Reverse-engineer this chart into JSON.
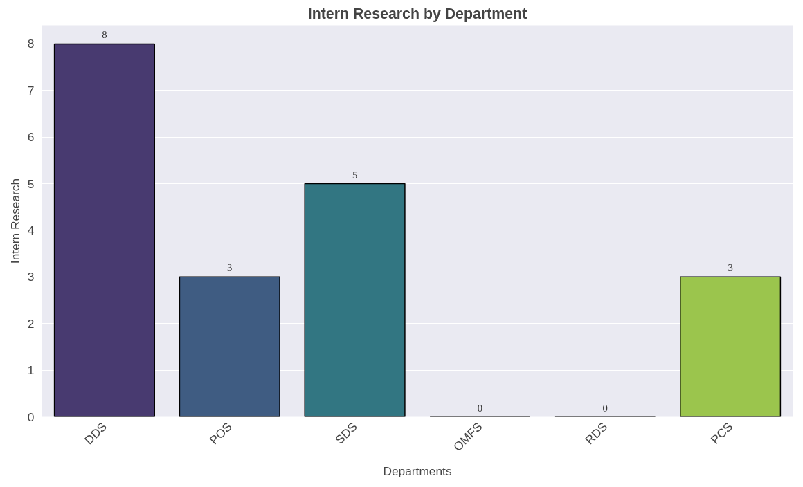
{
  "chart_data": {
    "type": "bar",
    "title": "Intern Research by Department",
    "xlabel": "Departments",
    "ylabel": "Intern Research",
    "categories": [
      "DDS",
      "POS",
      "SDS",
      "OMFS",
      "RDS",
      "PCS"
    ],
    "values": [
      8,
      3,
      5,
      0,
      0,
      3
    ],
    "colors": [
      "#483a70",
      "#3f5c82",
      "#327682",
      "#2a9680",
      "#58b56a",
      "#9bc54d"
    ],
    "ylim": [
      0,
      8.4
    ],
    "yticks": [
      0,
      1,
      2,
      3,
      4,
      5,
      6,
      7,
      8
    ],
    "grid": "y",
    "data_labels": true
  }
}
